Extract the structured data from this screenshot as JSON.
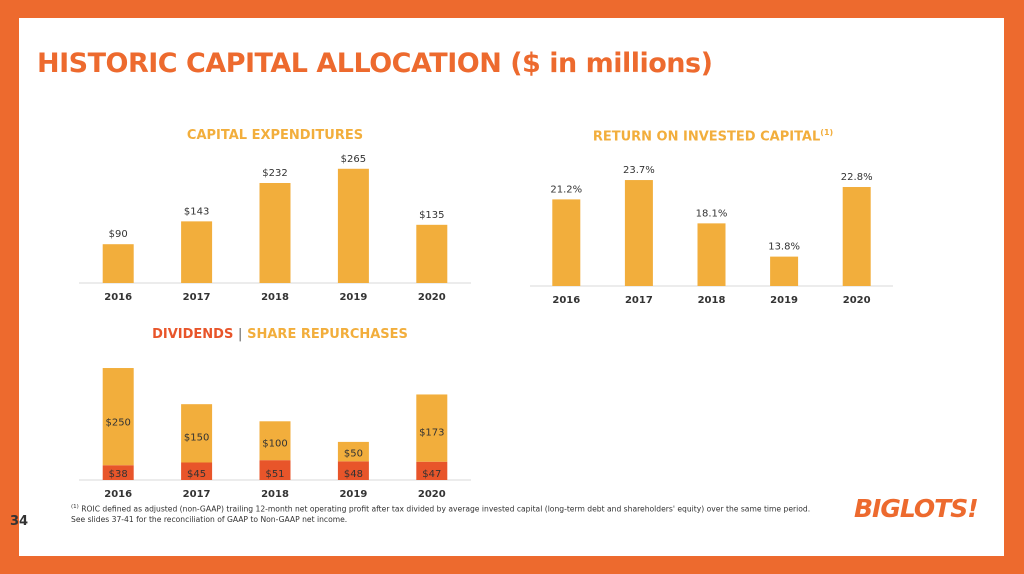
{
  "slide": {
    "title": "HISTORIC CAPITAL ALLOCATION ($ in millions)",
    "page_number": "34",
    "footnote_marker": "(1)",
    "footnote_line1": "ROIC defined as adjusted (non-GAAP) trailing 12-month net operating profit after tax divided by average invested capital (long-term debt and shareholders' equity) over the same time period.",
    "footnote_line2": "See slides 37-41 for the reconciliation of GAAP to Non-GAAP net income.",
    "logo_text": "BIGLOTS!"
  },
  "colors": {
    "gold": "#F2AE3C",
    "orange": "#E8552A",
    "frame": "#ED6A2E"
  },
  "chart_titles": {
    "capex": "CAPITAL EXPENDITURES",
    "roic": "RETURN ON INVESTED CAPITAL",
    "roic_sup": "(1)",
    "div_a": "DIVIDENDS",
    "div_sep": "|",
    "div_b": "SHARE REPURCHASES"
  },
  "chart_data": [
    {
      "type": "bar",
      "title": "CAPITAL EXPENDITURES",
      "categories": [
        "2016",
        "2017",
        "2018",
        "2019",
        "2020"
      ],
      "values": [
        90,
        143,
        232,
        265,
        135
      ],
      "labels": [
        "$90",
        "$143",
        "$232",
        "$265",
        "$135"
      ],
      "ylim": [
        0,
        290
      ]
    },
    {
      "type": "bar",
      "title": "RETURN ON INVESTED CAPITAL(1)",
      "categories": [
        "2016",
        "2017",
        "2018",
        "2019",
        "2020"
      ],
      "values": [
        21.2,
        23.7,
        18.1,
        13.8,
        22.8
      ],
      "labels": [
        "21.2%",
        "23.7%",
        "18.1%",
        "13.8%",
        "22.8%"
      ],
      "ylim": [
        10,
        25
      ]
    },
    {
      "type": "bar",
      "stacked": true,
      "title": "DIVIDENDS | SHARE REPURCHASES",
      "categories": [
        "2016",
        "2017",
        "2018",
        "2019",
        "2020"
      ],
      "series": [
        {
          "name": "DIVIDENDS",
          "values": [
            38,
            45,
            51,
            48,
            47
          ],
          "labels": [
            "$38",
            "$45",
            "$51",
            "$48",
            "$47"
          ],
          "color": "#E8552A"
        },
        {
          "name": "SHARE REPURCHASES",
          "values": [
            250,
            150,
            100,
            50,
            173
          ],
          "labels": [
            "$250",
            "$150",
            "$100",
            "$50",
            "$173"
          ],
          "color": "#F2AE3C"
        }
      ],
      "ylim": [
        0,
        300
      ]
    }
  ]
}
